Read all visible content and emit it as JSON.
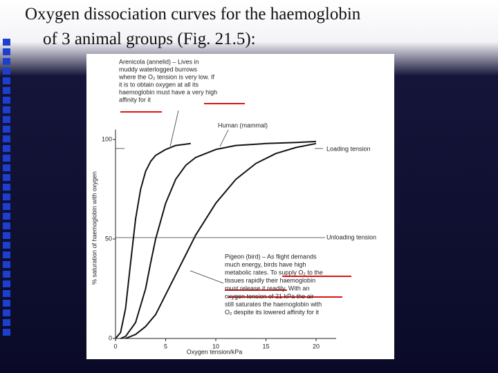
{
  "title_lines": [
    "Oxygen dissociation curves for the haemoglobin",
    "of 3 animal groups (Fig. 21.5):"
  ],
  "chart_data": {
    "type": "line",
    "x_label": "Oxygen tension/kPa",
    "y_label": "% saturation of haemoglobin with oxygen",
    "xlim": [
      0,
      22
    ],
    "ylim": [
      0,
      105
    ],
    "xticks": [
      0,
      5,
      10,
      15,
      20
    ],
    "yticks": [
      0,
      50,
      100
    ],
    "series": [
      {
        "color": "#111111",
        "x": [
          0,
          0.5,
          1,
          1.5,
          2,
          2.5,
          3,
          3.5,
          4,
          5,
          6,
          7.5
        ],
        "values": [
          0,
          3,
          15,
          38,
          60,
          75,
          84,
          89,
          92,
          95,
          97,
          98
        ]
      },
      {
        "color": "#111111",
        "x": [
          0.5,
          1,
          2,
          3,
          3.5,
          4,
          5,
          6,
          7,
          8,
          10,
          12,
          15,
          18,
          20
        ],
        "values": [
          0,
          1,
          8,
          25,
          38,
          50,
          68,
          80,
          87,
          91,
          95,
          97,
          98,
          98.5,
          99
        ]
      },
      {
        "color": "#111111",
        "x": [
          1,
          2,
          3,
          4,
          5,
          6,
          7,
          8,
          9,
          10,
          12,
          14,
          16,
          18,
          20
        ],
        "values": [
          0,
          2,
          6,
          12,
          22,
          32,
          42,
          52,
          60,
          68,
          80,
          88,
          93,
          96,
          98
        ]
      }
    ],
    "annotations": [
      [
        "Arenicola (annelid) – Lives in",
        "muddy waterlogged burrows",
        "where the O₂ tension is very low. If",
        "it is to obtain oxygen at all its",
        "haemoglobin must have a very high",
        "affinity for it"
      ],
      [
        "Human (mammal)"
      ],
      [
        "Loading tension"
      ],
      [
        "Unloading tension"
      ],
      [
        "Pigeon (bird) – As flight demands",
        "much energy, birds have high",
        "metabolic rates. To supply O₂ to the",
        "tissues rapidly their haemoglobin",
        "must release it readily. With an",
        "oxygen tension of 21 kPa the air",
        "still saturates the haemoglobin with",
        "O₂ despite its lowered affinity for it"
      ]
    ]
  }
}
